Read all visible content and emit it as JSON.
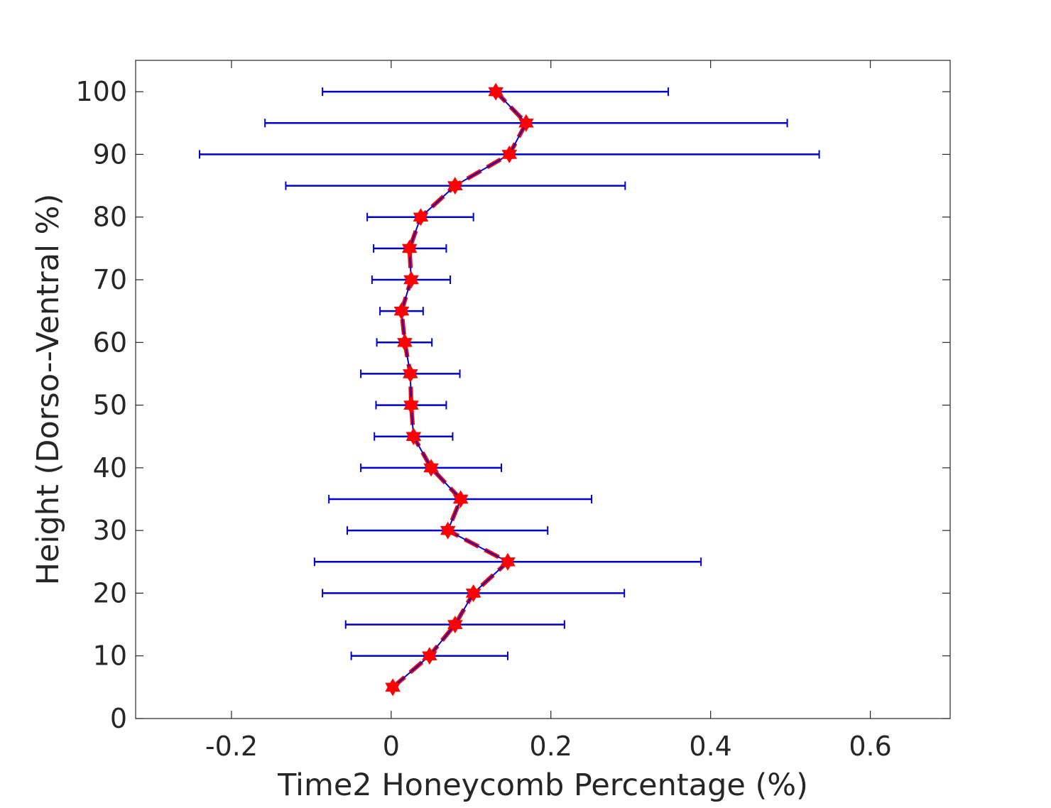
{
  "chart_data": {
    "type": "line",
    "title": "",
    "xlabel": "Time2 Honeycomb Percentage (%)",
    "ylabel": "Height (Dorso--Ventral %)",
    "xlim": [
      -0.32,
      0.7
    ],
    "ylim": [
      0,
      105
    ],
    "x_ticks": [
      -0.2,
      0,
      0.2,
      0.4,
      0.6
    ],
    "x_tick_labels": [
      "-0.2",
      "0",
      "0.2",
      "0.4",
      "0.6"
    ],
    "y_ticks": [
      0,
      10,
      20,
      30,
      40,
      50,
      60,
      70,
      80,
      90,
      100
    ],
    "y_tick_labels": [
      "0",
      "10",
      "20",
      "30",
      "40",
      "50",
      "60",
      "70",
      "80",
      "90",
      "100"
    ],
    "grid": false,
    "series": [
      {
        "line_color": "#0000cc",
        "marker_color": "#ff0000",
        "marker": "hexagram",
        "line_style": "solid blue with dashed red overlay",
        "points": [
          {
            "y": 5,
            "x": 0.002,
            "err_low": 0.002,
            "err_high": 0.002
          },
          {
            "y": 10,
            "x": 0.048,
            "err_low": -0.05,
            "err_high": 0.146
          },
          {
            "y": 15,
            "x": 0.08,
            "err_low": -0.057,
            "err_high": 0.217
          },
          {
            "y": 20,
            "x": 0.103,
            "err_low": -0.086,
            "err_high": 0.292
          },
          {
            "y": 25,
            "x": 0.146,
            "err_low": -0.096,
            "err_high": 0.388
          },
          {
            "y": 30,
            "x": 0.071,
            "err_low": -0.055,
            "err_high": 0.196
          },
          {
            "y": 35,
            "x": 0.087,
            "err_low": -0.078,
            "err_high": 0.251
          },
          {
            "y": 40,
            "x": 0.05,
            "err_low": -0.038,
            "err_high": 0.138
          },
          {
            "y": 45,
            "x": 0.028,
            "err_low": -0.021,
            "err_high": 0.077
          },
          {
            "y": 50,
            "x": 0.025,
            "err_low": -0.019,
            "err_high": 0.069
          },
          {
            "y": 55,
            "x": 0.024,
            "err_low": -0.038,
            "err_high": 0.086
          },
          {
            "y": 60,
            "x": 0.017,
            "err_low": -0.018,
            "err_high": 0.051
          },
          {
            "y": 65,
            "x": 0.013,
            "err_low": -0.014,
            "err_high": 0.04
          },
          {
            "y": 70,
            "x": 0.025,
            "err_low": -0.024,
            "err_high": 0.074
          },
          {
            "y": 75,
            "x": 0.023,
            "err_low": -0.022,
            "err_high": 0.069
          },
          {
            "y": 80,
            "x": 0.037,
            "err_low": -0.03,
            "err_high": 0.103
          },
          {
            "y": 85,
            "x": 0.08,
            "err_low": -0.132,
            "err_high": 0.293
          },
          {
            "y": 90,
            "x": 0.148,
            "err_low": -0.24,
            "err_high": 0.536
          },
          {
            "y": 95,
            "x": 0.169,
            "err_low": -0.158,
            "err_high": 0.496
          },
          {
            "y": 100,
            "x": 0.131,
            "err_low": -0.086,
            "err_high": 0.347
          }
        ]
      }
    ]
  }
}
